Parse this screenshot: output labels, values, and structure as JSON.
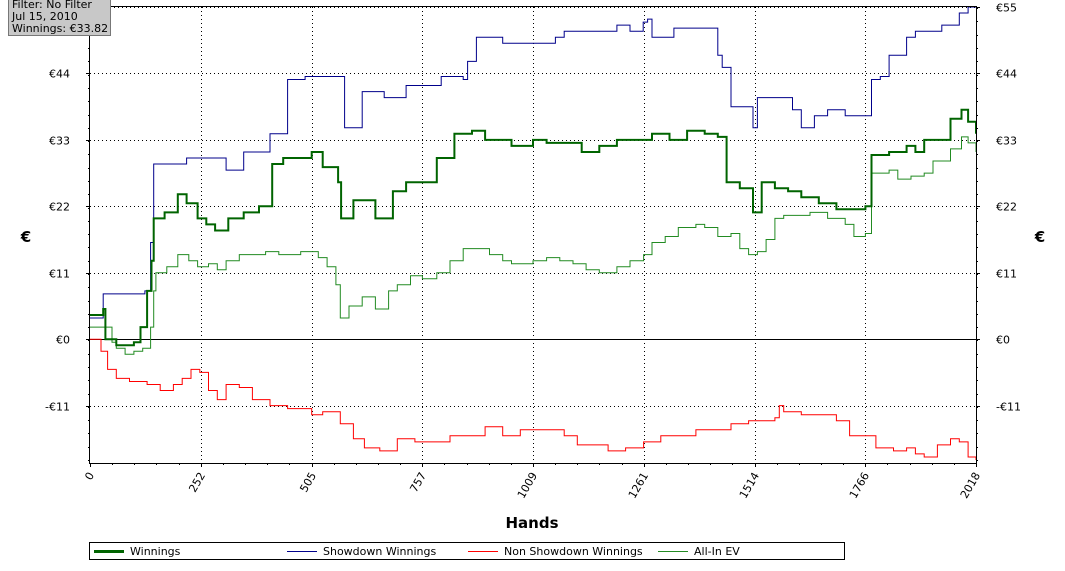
{
  "info": {
    "filter": "Filter: No Filter",
    "date": "Jul 15, 2010",
    "winnings": "Winnings: €33.82"
  },
  "chart_data": {
    "type": "line",
    "xlabel": "Hands",
    "ylabel": "€",
    "xlim": [
      0,
      2018
    ],
    "ylim": [
      -20.5,
      55
    ],
    "x_ticks": [
      0,
      252,
      505,
      757,
      1009,
      1261,
      1514,
      1766,
      2018
    ],
    "y_ticks": [
      -11,
      0,
      11,
      22,
      33,
      44,
      55
    ],
    "y_tick_labels": [
      "-€11",
      "€0",
      "€11",
      "€22",
      "€33",
      "€44",
      "€55"
    ],
    "grid": true,
    "legend_position": "bottom",
    "series": [
      {
        "name": "Winnings",
        "color": "#006400",
        "width": 2,
        "points": [
          [
            0,
            4
          ],
          [
            25,
            4
          ],
          [
            30,
            5
          ],
          [
            35,
            0
          ],
          [
            60,
            -1
          ],
          [
            100,
            -0.5
          ],
          [
            115,
            2
          ],
          [
            130,
            8
          ],
          [
            140,
            13
          ],
          [
            145,
            20
          ],
          [
            170,
            21
          ],
          [
            200,
            24
          ],
          [
            220,
            22.5
          ],
          [
            245,
            20
          ],
          [
            265,
            19
          ],
          [
            285,
            18
          ],
          [
            315,
            20
          ],
          [
            350,
            21
          ],
          [
            385,
            22
          ],
          [
            415,
            29
          ],
          [
            440,
            30
          ],
          [
            475,
            30
          ],
          [
            505,
            31
          ],
          [
            530,
            28.5
          ],
          [
            565,
            26
          ],
          [
            572,
            20
          ],
          [
            600,
            23
          ],
          [
            650,
            20
          ],
          [
            690,
            24.5
          ],
          [
            720,
            26
          ],
          [
            757,
            26
          ],
          [
            790,
            30
          ],
          [
            830,
            34
          ],
          [
            870,
            34.5
          ],
          [
            900,
            33
          ],
          [
            930,
            33
          ],
          [
            960,
            32
          ],
          [
            1009,
            33
          ],
          [
            1040,
            32.5
          ],
          [
            1080,
            32.5
          ],
          [
            1120,
            31
          ],
          [
            1160,
            32
          ],
          [
            1200,
            33
          ],
          [
            1240,
            33
          ],
          [
            1280,
            34
          ],
          [
            1320,
            33
          ],
          [
            1360,
            34.5
          ],
          [
            1400,
            34
          ],
          [
            1430,
            33.5
          ],
          [
            1450,
            26
          ],
          [
            1480,
            25
          ],
          [
            1500,
            25
          ],
          [
            1510,
            21
          ],
          [
            1530,
            26
          ],
          [
            1560,
            25
          ],
          [
            1590,
            24.5
          ],
          [
            1620,
            23.5
          ],
          [
            1660,
            22.5
          ],
          [
            1700,
            21.5
          ],
          [
            1730,
            21.5
          ],
          [
            1766,
            22
          ],
          [
            1780,
            30.5
          ],
          [
            1820,
            31
          ],
          [
            1860,
            32
          ],
          [
            1880,
            31
          ],
          [
            1900,
            33
          ],
          [
            1960,
            36.5
          ],
          [
            1985,
            38
          ],
          [
            2000,
            36
          ],
          [
            2018,
            34
          ]
        ]
      },
      {
        "name": "Showdown Winnings",
        "color": "#00008b",
        "width": 1,
        "points": [
          [
            0,
            3.5
          ],
          [
            25,
            3.5
          ],
          [
            30,
            7.5
          ],
          [
            100,
            7.5
          ],
          [
            125,
            8
          ],
          [
            138,
            16
          ],
          [
            145,
            29
          ],
          [
            180,
            29
          ],
          [
            220,
            30
          ],
          [
            300,
            30
          ],
          [
            310,
            28
          ],
          [
            340,
            28
          ],
          [
            350,
            31
          ],
          [
            390,
            31
          ],
          [
            410,
            34
          ],
          [
            440,
            34
          ],
          [
            450,
            43
          ],
          [
            480,
            43
          ],
          [
            490,
            43.5
          ],
          [
            570,
            43.5
          ],
          [
            580,
            35
          ],
          [
            610,
            35
          ],
          [
            620,
            41
          ],
          [
            660,
            41
          ],
          [
            670,
            40
          ],
          [
            700,
            40
          ],
          [
            720,
            42
          ],
          [
            780,
            42
          ],
          [
            800,
            43.5
          ],
          [
            830,
            43.5
          ],
          [
            850,
            43
          ],
          [
            860,
            46
          ],
          [
            880,
            50
          ],
          [
            920,
            50
          ],
          [
            940,
            49
          ],
          [
            1040,
            49
          ],
          [
            1060,
            50
          ],
          [
            1080,
            51
          ],
          [
            1180,
            51
          ],
          [
            1200,
            52
          ],
          [
            1220,
            52
          ],
          [
            1230,
            51
          ],
          [
            1250,
            51
          ],
          [
            1260,
            52.5
          ],
          [
            1270,
            53
          ],
          [
            1280,
            50
          ],
          [
            1300,
            50
          ],
          [
            1330,
            51.5
          ],
          [
            1400,
            51.5
          ],
          [
            1430,
            47
          ],
          [
            1440,
            45
          ],
          [
            1460,
            38.5
          ],
          [
            1500,
            38.5
          ],
          [
            1510,
            35
          ],
          [
            1520,
            40
          ],
          [
            1560,
            40
          ],
          [
            1600,
            38
          ],
          [
            1620,
            35
          ],
          [
            1650,
            37
          ],
          [
            1680,
            38
          ],
          [
            1700,
            38
          ],
          [
            1720,
            37
          ],
          [
            1760,
            37
          ],
          [
            1780,
            43
          ],
          [
            1800,
            43.5
          ],
          [
            1820,
            47
          ],
          [
            1860,
            50
          ],
          [
            1880,
            51
          ],
          [
            1920,
            51
          ],
          [
            1940,
            52
          ],
          [
            1960,
            52
          ],
          [
            1980,
            54
          ],
          [
            2000,
            55
          ],
          [
            2018,
            55
          ]
        ]
      },
      {
        "name": "Non Showdown Winnings",
        "color": "#ff0000",
        "width": 1,
        "points": [
          [
            0,
            0
          ],
          [
            25,
            -2
          ],
          [
            40,
            -5
          ],
          [
            60,
            -6.5
          ],
          [
            90,
            -7
          ],
          [
            130,
            -7.5
          ],
          [
            160,
            -8.5
          ],
          [
            190,
            -7.5
          ],
          [
            210,
            -6.5
          ],
          [
            230,
            -5
          ],
          [
            250,
            -5.5
          ],
          [
            270,
            -8.5
          ],
          [
            290,
            -10
          ],
          [
            310,
            -7.5
          ],
          [
            340,
            -8
          ],
          [
            370,
            -10
          ],
          [
            410,
            -11
          ],
          [
            450,
            -11.5
          ],
          [
            505,
            -12.5
          ],
          [
            530,
            -12
          ],
          [
            570,
            -14
          ],
          [
            600,
            -16.5
          ],
          [
            625,
            -18
          ],
          [
            660,
            -18.5
          ],
          [
            700,
            -16.5
          ],
          [
            740,
            -17
          ],
          [
            780,
            -17
          ],
          [
            820,
            -16
          ],
          [
            860,
            -16
          ],
          [
            900,
            -14.5
          ],
          [
            940,
            -16
          ],
          [
            980,
            -15
          ],
          [
            1009,
            -15
          ],
          [
            1040,
            -15
          ],
          [
            1080,
            -16
          ],
          [
            1110,
            -17.5
          ],
          [
            1140,
            -17.5
          ],
          [
            1180,
            -18.5
          ],
          [
            1220,
            -18
          ],
          [
            1261,
            -17
          ],
          [
            1300,
            -16
          ],
          [
            1340,
            -16
          ],
          [
            1380,
            -15
          ],
          [
            1420,
            -15
          ],
          [
            1460,
            -14
          ],
          [
            1500,
            -13.5
          ],
          [
            1540,
            -13.5
          ],
          [
            1560,
            -13
          ],
          [
            1570,
            -11
          ],
          [
            1580,
            -12
          ],
          [
            1620,
            -12.5
          ],
          [
            1660,
            -12.5
          ],
          [
            1700,
            -13.5
          ],
          [
            1730,
            -16
          ],
          [
            1760,
            -16
          ],
          [
            1790,
            -18
          ],
          [
            1830,
            -18.5
          ],
          [
            1860,
            -18
          ],
          [
            1880,
            -19
          ],
          [
            1900,
            -19.5
          ],
          [
            1930,
            -17.5
          ],
          [
            1960,
            -16.5
          ],
          [
            1980,
            -17
          ],
          [
            2000,
            -19.5
          ],
          [
            2018,
            -20
          ]
        ]
      },
      {
        "name": "All-In EV",
        "color": "#228b22",
        "width": 1,
        "points": [
          [
            0,
            2
          ],
          [
            25,
            2
          ],
          [
            50,
            -0.5
          ],
          [
            60,
            -1.5
          ],
          [
            80,
            -2.5
          ],
          [
            100,
            -2
          ],
          [
            120,
            -1.5
          ],
          [
            138,
            2
          ],
          [
            145,
            8
          ],
          [
            150,
            11
          ],
          [
            175,
            12
          ],
          [
            200,
            14
          ],
          [
            225,
            13
          ],
          [
            245,
            12
          ],
          [
            270,
            12.5
          ],
          [
            290,
            11.5
          ],
          [
            310,
            13
          ],
          [
            340,
            14
          ],
          [
            370,
            14
          ],
          [
            400,
            14.5
          ],
          [
            430,
            14
          ],
          [
            480,
            14.5
          ],
          [
            505,
            14.5
          ],
          [
            520,
            13.5
          ],
          [
            540,
            12
          ],
          [
            560,
            9
          ],
          [
            570,
            3.5
          ],
          [
            590,
            5.5
          ],
          [
            620,
            7
          ],
          [
            650,
            5
          ],
          [
            680,
            8
          ],
          [
            700,
            9
          ],
          [
            730,
            10.5
          ],
          [
            757,
            10
          ],
          [
            790,
            11
          ],
          [
            820,
            13
          ],
          [
            850,
            15
          ],
          [
            880,
            15
          ],
          [
            910,
            14
          ],
          [
            940,
            13
          ],
          [
            960,
            12.5
          ],
          [
            980,
            12.5
          ],
          [
            1009,
            13
          ],
          [
            1040,
            13.5
          ],
          [
            1070,
            13
          ],
          [
            1100,
            12.5
          ],
          [
            1130,
            11.5
          ],
          [
            1160,
            11
          ],
          [
            1200,
            12
          ],
          [
            1230,
            13
          ],
          [
            1261,
            14
          ],
          [
            1280,
            16
          ],
          [
            1310,
            17
          ],
          [
            1340,
            18.5
          ],
          [
            1380,
            19
          ],
          [
            1400,
            18.5
          ],
          [
            1430,
            17
          ],
          [
            1460,
            17.5
          ],
          [
            1480,
            15
          ],
          [
            1500,
            14
          ],
          [
            1520,
            14.5
          ],
          [
            1540,
            16.5
          ],
          [
            1560,
            20
          ],
          [
            1580,
            20.5
          ],
          [
            1600,
            20.5
          ],
          [
            1640,
            21
          ],
          [
            1680,
            20
          ],
          [
            1720,
            19
          ],
          [
            1740,
            17
          ],
          [
            1766,
            17.5
          ],
          [
            1780,
            27.5
          ],
          [
            1820,
            28
          ],
          [
            1840,
            26.5
          ],
          [
            1870,
            27
          ],
          [
            1900,
            27.5
          ],
          [
            1920,
            29.5
          ],
          [
            1960,
            31.5
          ],
          [
            1985,
            33.5
          ],
          [
            2000,
            32.5
          ],
          [
            2018,
            31
          ]
        ]
      }
    ]
  }
}
